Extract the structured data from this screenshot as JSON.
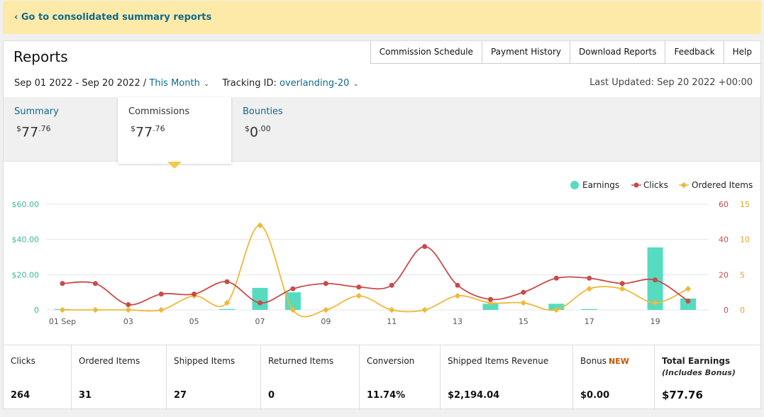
{
  "banner": {
    "link": "‹ Go to consolidated summary reports"
  },
  "header": {
    "title": "Reports",
    "nav": [
      "Commission Schedule",
      "Payment History",
      "Download Reports",
      "Feedback",
      "Help"
    ],
    "date_range": "Sep 01 2022 - Sep 20 2022 / ",
    "period": "This Month",
    "tracking_label": "Tracking ID: ",
    "tracking_id": "overlanding-20",
    "last_updated": "Last Updated: Sep 20 2022 +00:00"
  },
  "tabs": [
    {
      "label": "Summary",
      "amount_main": "77",
      "amount_cents": ".76"
    },
    {
      "label": "Commissions",
      "amount_main": "77",
      "amount_cents": ".76",
      "active": true
    },
    {
      "label": "Bounties",
      "amount_main": "0",
      "amount_cents": ".00"
    }
  ],
  "currency_symbol": "$",
  "colors": {
    "earnings": "#55dcc0",
    "clicks": "#c94a4a",
    "ordered": "#eeb93a",
    "link": "#0f6b8c",
    "banner": "#fdeaa8"
  },
  "chart_data": {
    "type": "line",
    "categories": [
      "01 Sep",
      "02",
      "03",
      "04",
      "05",
      "06",
      "07",
      "08",
      "09",
      "10",
      "11",
      "12",
      "13",
      "14",
      "15",
      "16",
      "17",
      "18",
      "19",
      "20"
    ],
    "x_tick_labels": [
      "01 Sep",
      "03",
      "05",
      "07",
      "09",
      "11",
      "13",
      "15",
      "17",
      "19"
    ],
    "legend": [
      "Earnings",
      "Clicks",
      "Ordered Items"
    ],
    "legend_position": "top-right",
    "left_axis": {
      "ticks": [
        "$60.00",
        "$40.00",
        "$20.00",
        "0"
      ],
      "ylim": [
        0,
        60
      ]
    },
    "right_axis_clicks": {
      "ticks": [
        "60",
        "40",
        "20",
        "0"
      ],
      "ylim": [
        0,
        60
      ]
    },
    "right_axis_items": {
      "ticks": [
        "15",
        "10",
        "5",
        "0"
      ],
      "ylim": [
        0,
        15
      ]
    },
    "series": [
      {
        "name": "Earnings",
        "kind": "bar",
        "values": [
          0.5,
          0,
          0,
          0,
          0,
          0.5,
          12.5,
          10,
          0,
          0,
          0,
          0,
          0,
          3.5,
          0,
          3.5,
          0.5,
          0,
          35.5,
          6.5
        ]
      },
      {
        "name": "Clicks",
        "kind": "line",
        "values": [
          15,
          15,
          3,
          9,
          9,
          16,
          4,
          12,
          15,
          13,
          14,
          36,
          14,
          6,
          10,
          18,
          18,
          15,
          17,
          5
        ]
      },
      {
        "name": "Ordered Items",
        "kind": "line",
        "values": [
          0,
          0,
          0,
          0,
          2,
          1,
          12,
          0,
          0,
          2,
          0,
          0,
          2,
          1,
          1,
          0,
          3,
          3,
          1,
          3
        ]
      }
    ]
  },
  "stats": [
    {
      "label": "Clicks",
      "value": "264"
    },
    {
      "label": "Ordered Items",
      "value": "31"
    },
    {
      "label": "Shipped Items",
      "value": "27"
    },
    {
      "label": "Returned Items",
      "value": "0"
    },
    {
      "label": "Conversion",
      "value": "11.74%"
    },
    {
      "label": "Shipped Items Revenue",
      "value": "$2,194.04"
    },
    {
      "label": "Bonus",
      "badge": "NEW",
      "value": "$0.00"
    },
    {
      "label": "Total Earnings",
      "sub": "(Includes Bonus)",
      "value": "$77.76"
    }
  ]
}
